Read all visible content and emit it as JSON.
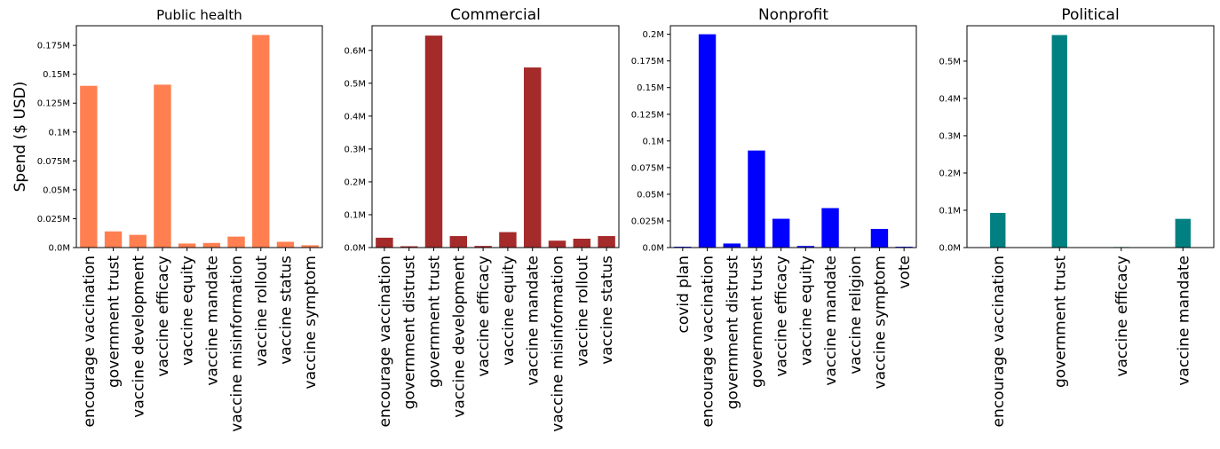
{
  "figure": {
    "ylabel": "Spend ($ USD)"
  },
  "chart_data": [
    {
      "type": "bar",
      "title": "Public health",
      "color": "#ff7f50",
      "ylim": [
        0,
        192000
      ],
      "yticks": [
        {
          "value": 0,
          "label": "0.0M"
        },
        {
          "value": 25000,
          "label": "0.025M"
        },
        {
          "value": 50000,
          "label": "0.05M"
        },
        {
          "value": 75000,
          "label": "0.075M"
        },
        {
          "value": 100000,
          "label": "0.1M"
        },
        {
          "value": 125000,
          "label": "0.125M"
        },
        {
          "value": 150000,
          "label": "0.15M"
        },
        {
          "value": 175000,
          "label": "0.175M"
        }
      ],
      "categories": [
        "encourage vaccination",
        "government trust",
        "vaccine development",
        "vaccine efficacy",
        "vaccine equity",
        "vaccine mandate",
        "vaccine misinformation",
        "vaccine rollout",
        "vaccine status",
        "vaccine symptom"
      ],
      "values": [
        140000,
        14000,
        11000,
        141000,
        3500,
        4000,
        9500,
        184000,
        5000,
        2000
      ]
    },
    {
      "type": "bar",
      "title": "Commercial",
      "color": "#a52a2a",
      "ylim": [
        0,
        675000
      ],
      "yticks": [
        {
          "value": 0,
          "label": "0.0M"
        },
        {
          "value": 100000,
          "label": "0.1M"
        },
        {
          "value": 200000,
          "label": "0.2M"
        },
        {
          "value": 300000,
          "label": "0.3M"
        },
        {
          "value": 400000,
          "label": "0.4M"
        },
        {
          "value": 500000,
          "label": "0.5M"
        },
        {
          "value": 600000,
          "label": "0.6M"
        }
      ],
      "categories": [
        "encourage vaccination",
        "government distrust",
        "government trust",
        "vaccine development",
        "vaccine efficacy",
        "vaccine equity",
        "vaccine mandate",
        "vaccine misinformation",
        "vaccine rollout",
        "vaccine status"
      ],
      "values": [
        30000,
        4000,
        645000,
        35000,
        5000,
        47000,
        548000,
        21000,
        27000,
        35000
      ]
    },
    {
      "type": "bar",
      "title": "Nonprofit",
      "color": "#0000ff",
      "ylim": [
        0,
        208000
      ],
      "yticks": [
        {
          "value": 0,
          "label": "0.0M"
        },
        {
          "value": 25000,
          "label": "0.025M"
        },
        {
          "value": 50000,
          "label": "0.05M"
        },
        {
          "value": 75000,
          "label": "0.075M"
        },
        {
          "value": 100000,
          "label": "0.1M"
        },
        {
          "value": 125000,
          "label": "0.125M"
        },
        {
          "value": 150000,
          "label": "0.15M"
        },
        {
          "value": 175000,
          "label": "0.175M"
        },
        {
          "value": 200000,
          "label": "0.2M"
        }
      ],
      "categories": [
        "covid plan",
        "encourage vaccination",
        "government distrust",
        "government trust",
        "vaccine efficacy",
        "vaccine equity",
        "vaccine mandate",
        "vaccine religion",
        "vaccine symptom",
        "vote"
      ],
      "values": [
        800,
        200000,
        3800,
        91000,
        27000,
        1500,
        37000,
        0,
        17500,
        800
      ]
    },
    {
      "type": "bar",
      "title": "Political",
      "color": "#008080",
      "ylim": [
        0,
        595000
      ],
      "yticks": [
        {
          "value": 0,
          "label": "0.0M"
        },
        {
          "value": 100000,
          "label": "0.1M"
        },
        {
          "value": 200000,
          "label": "0.2M"
        },
        {
          "value": 300000,
          "label": "0.3M"
        },
        {
          "value": 400000,
          "label": "0.4M"
        },
        {
          "value": 500000,
          "label": "0.5M"
        }
      ],
      "categories": [
        "encourage vaccination",
        "government trust",
        "vaccine efficacy",
        "vaccine mandate"
      ],
      "values": [
        93000,
        570000,
        1500,
        77000
      ]
    }
  ]
}
